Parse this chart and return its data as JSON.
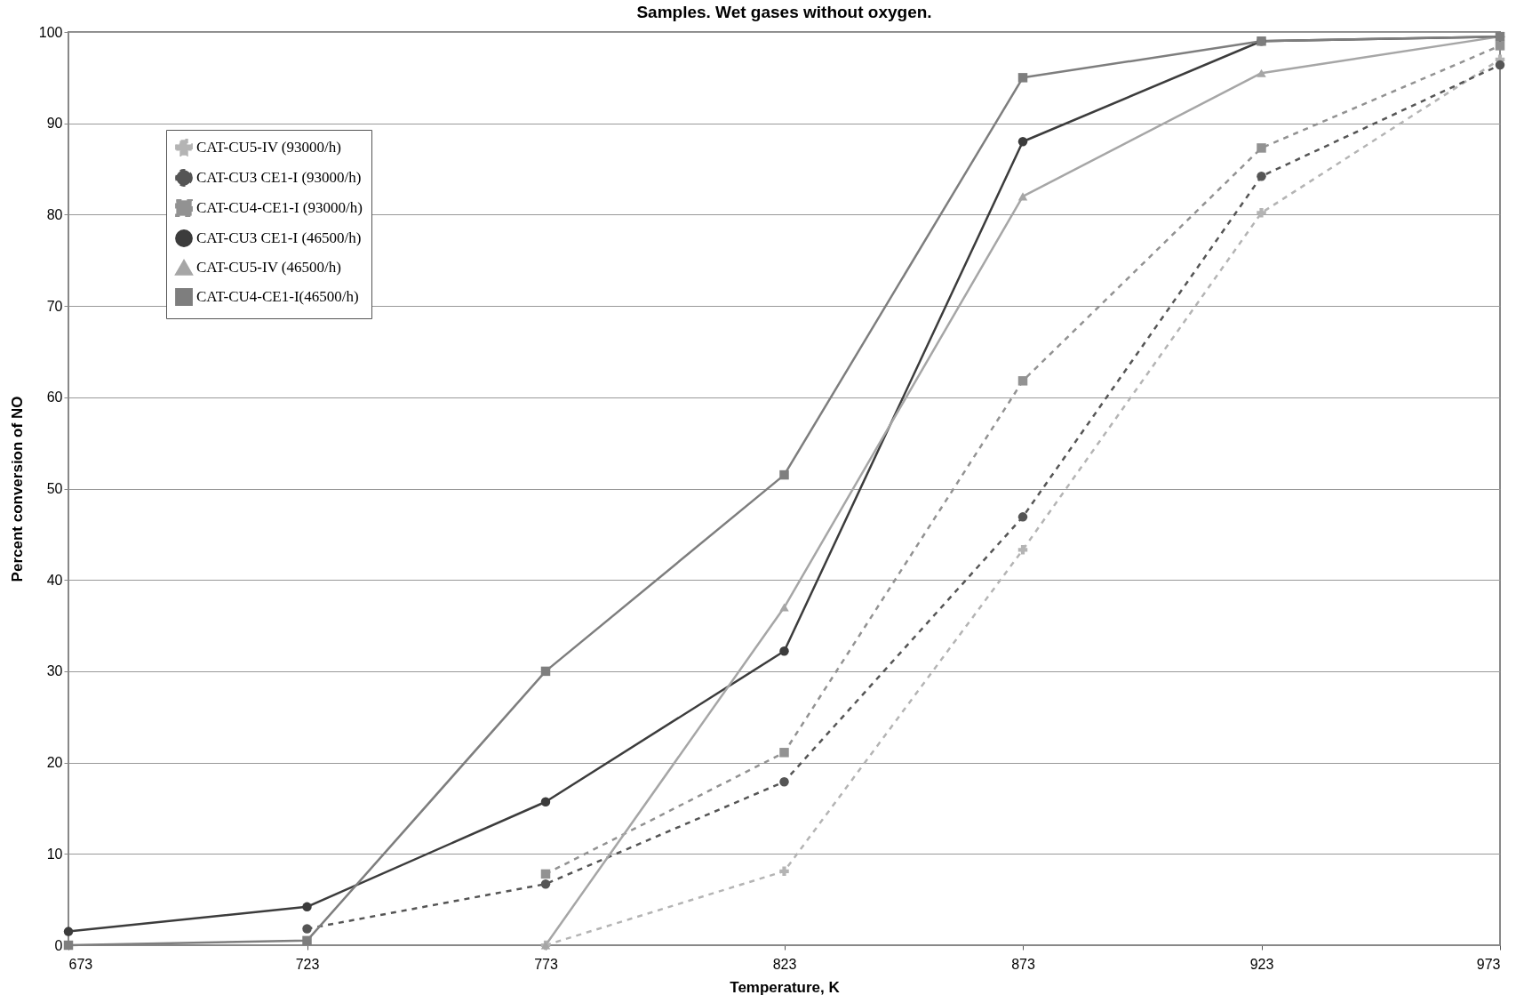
{
  "chart_data": {
    "type": "line",
    "title": "Samples. Wet gases without oxygen.",
    "xlabel": "Temperature, K",
    "ylabel": "Percent conversion of NO",
    "x": [
      673,
      723,
      773,
      823,
      873,
      923,
      973
    ],
    "xlim": [
      673,
      973
    ],
    "xticks": [
      673,
      723,
      773,
      823,
      873,
      923,
      973
    ],
    "ylim": [
      0,
      100
    ],
    "yticks": [
      0,
      10,
      20,
      30,
      40,
      50,
      60,
      70,
      80,
      90,
      100
    ],
    "grid": "y",
    "legend": "top left",
    "series": [
      {
        "name": "CAT-CU5-IV (93000/h)",
        "color": "#b4b4b4",
        "line_style": "dashed",
        "marker": "cross",
        "values": [
          null,
          null,
          0,
          8.1,
          43.3,
          80.2,
          97
        ]
      },
      {
        "name": "CAT-CU3 CE1-I (93000/h)",
        "color": "#555555",
        "line_style": "dashed",
        "marker": "circle",
        "values": [
          null,
          1.8,
          6.7,
          17.9,
          46.9,
          84.2,
          96.4
        ]
      },
      {
        "name": "CAT-CU4-CE1-I (93000/h)",
        "color": "#929292",
        "line_style": "dashed",
        "marker": "square",
        "values": [
          null,
          null,
          7.8,
          21.1,
          61.8,
          87.3,
          98.5
        ]
      },
      {
        "name": "CAT-CU3 CE1-I (46500/h)",
        "color": "#3c3c3c",
        "line_style": "solid",
        "marker": "circle",
        "values": [
          1.5,
          4.2,
          15.7,
          32.2,
          88,
          99,
          99.5
        ]
      },
      {
        "name": "CAT-CU5-IV (46500/h)",
        "color": "#a6a6a6",
        "line_style": "solid",
        "marker": "triangle",
        "values": [
          null,
          null,
          0,
          37,
          82,
          95.5,
          99.5
        ]
      },
      {
        "name": "CAT-CU4-CE1-I(46500/h)",
        "color": "#7e7e7e",
        "line_style": "solid",
        "marker": "square",
        "values": [
          0,
          0.5,
          30,
          51.5,
          95,
          99,
          99.5
        ]
      }
    ]
  }
}
